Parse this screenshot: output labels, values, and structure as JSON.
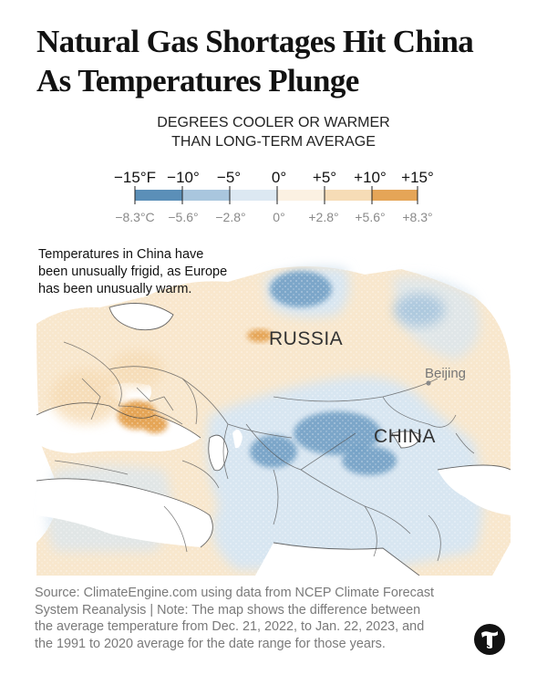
{
  "title": {
    "line1": "Natural Gas Shortages Hit China",
    "line2": "As Temperatures Plunge"
  },
  "subtitle": {
    "line1": "DEGREES COOLER OR WARMER",
    "line2": "THAN LONG-TERM AVERAGE"
  },
  "legend": {
    "fahrenheit": [
      "−15°F",
      "−10°",
      "−5°",
      "0°",
      "+5°",
      "+10°",
      "+15°"
    ],
    "celsius": [
      "−8.3°C",
      "−5.6°",
      "−2.8°",
      "0°",
      "+2.8°",
      "+5.6°",
      "+8.3°"
    ],
    "swatches": [
      "#5b8fb8",
      "#a9c6de",
      "#dce8f2",
      "#fbf1e2",
      "#f6dcb6",
      "#e5a557"
    ]
  },
  "note": {
    "line1": "Temperatures in China have",
    "line2": "been unusually frigid, as Europe",
    "line3": "has been unusually warm."
  },
  "map": {
    "labels": {
      "russia": "RUSSIA",
      "china": "CHINA",
      "beijing": "Beijing"
    },
    "colors": {
      "water": "#ffffff",
      "land_warm": "#f8e7cd",
      "land_cool": "#d8e6f1",
      "strong_warm": "#e5a557",
      "strong_cool": "#6d9cc3",
      "borders": "#555555"
    }
  },
  "source": {
    "line1": "Source: ClimateEngine.com using data from NCEP Climate Forecast",
    "line2": "System Reanalysis | Note: The map shows the difference between",
    "line3": "the average temperature from Dec. 21, 2022, to Jan. 22, 2023, and",
    "line4": "the 1991 to 2020 average for the date range for those years."
  },
  "logo": {
    "icon": "nyt-t-logo"
  }
}
